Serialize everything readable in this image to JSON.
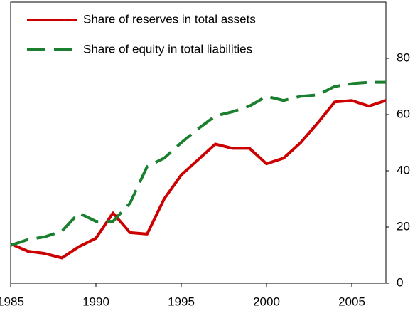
{
  "chart_data": {
    "type": "line",
    "x": [
      1985,
      1986,
      1987,
      1988,
      1989,
      1990,
      1991,
      1992,
      1993,
      1994,
      1995,
      1996,
      1997,
      1998,
      1999,
      2000,
      2001,
      2002,
      2003,
      2004,
      2005,
      2006,
      2007
    ],
    "series": [
      {
        "name": "Share of reserves in total assets",
        "color": "#cc0000",
        "dash": "solid",
        "values": [
          14,
          11.4,
          10.6,
          9,
          13,
          16,
          25,
          18,
          17.5,
          30,
          38.5,
          44,
          49.5,
          48,
          48,
          42.5,
          44.5,
          50,
          57,
          64.5,
          65,
          63,
          65
        ]
      },
      {
        "name": "Share of equity in total liabilities",
        "color": "#1a7f2e",
        "dash": "dashed",
        "values": [
          13.5,
          15.5,
          16.5,
          18.5,
          25,
          22,
          22,
          28.5,
          41.5,
          44.5,
          50,
          55,
          59.5,
          61,
          63,
          66.5,
          65,
          66.5,
          67,
          70,
          71,
          71.5,
          71.5
        ]
      }
    ],
    "xlim": [
      1985,
      2007
    ],
    "xticks": [
      1985,
      1990,
      1995,
      2000,
      2005
    ],
    "ylim": [
      0,
      100
    ],
    "yticks": [
      0,
      20,
      40,
      60,
      80
    ],
    "legend": "top-left"
  }
}
